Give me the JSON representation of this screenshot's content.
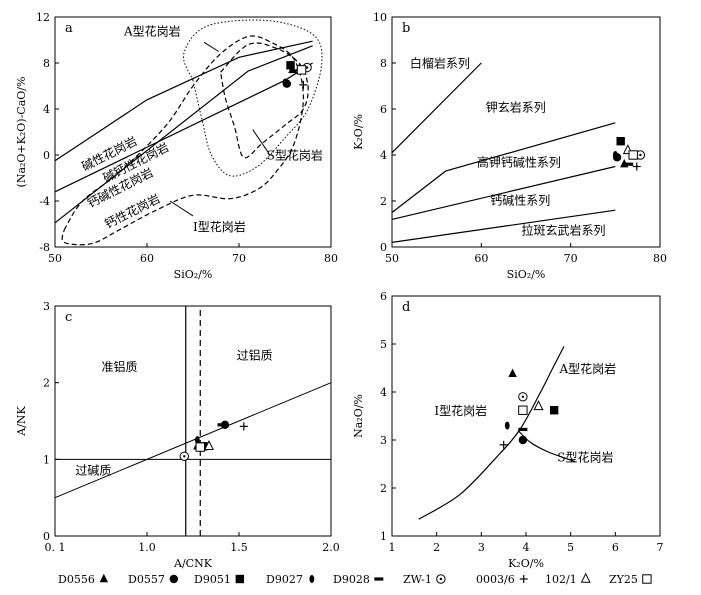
{
  "chart_data": [
    {
      "id": "a",
      "type": "scatter",
      "panel_label": "a",
      "xlabel": "SiO₂/%",
      "ylabel": "(Na₂O+K₂O)-CaO/%",
      "xlim": [
        50,
        80
      ],
      "ylim": [
        -8,
        12
      ],
      "xticks": [
        "50",
        "60",
        "70",
        "80"
      ],
      "yticks": [
        "-8",
        "-4",
        "0",
        "4",
        "8",
        "12"
      ],
      "field_labels": [
        "A型花岗岩",
        "碱性花岗岩",
        "碱钙性花岗岩",
        "钙碱性花岗岩",
        "钙性花岗岩",
        "S型花岗岩",
        "I型花岗岩"
      ],
      "series": [
        {
          "name": "D0556",
          "marker": "triangle",
          "x": 75.8,
          "y": 7.4
        },
        {
          "name": "D0557",
          "marker": "circle",
          "x": 75.2,
          "y": 6.2
        },
        {
          "name": "D9051",
          "marker": "square",
          "x": 75.6,
          "y": 7.8
        },
        {
          "name": "D9027",
          "marker": "diamond",
          "x": 75.0,
          "y": 6.3
        },
        {
          "name": "D9028",
          "marker": "dash",
          "x": 76.2,
          "y": 7.3
        },
        {
          "name": "ZW-1",
          "marker": "circledot",
          "x": 77.4,
          "y": 7.6
        },
        {
          "name": "0003/6",
          "marker": "plus",
          "x": 77.0,
          "y": 6.1
        },
        {
          "name": "102/1",
          "marker": "opentriangle",
          "x": 76.6,
          "y": 7.5
        },
        {
          "name": "ZY25",
          "marker": "opensquare",
          "x": 76.8,
          "y": 7.4
        }
      ]
    },
    {
      "id": "b",
      "type": "scatter",
      "panel_label": "b",
      "xlabel": "SiO₂/%",
      "ylabel": "K₂O/%",
      "xlim": [
        50,
        80
      ],
      "ylim": [
        0,
        10
      ],
      "xticks": [
        "50",
        "60",
        "70",
        "80"
      ],
      "yticks": [
        "0",
        "2",
        "4",
        "6",
        "8",
        "10"
      ],
      "field_labels": [
        "白榴岩系列",
        "钾玄岩系列",
        "高钾钙碱性系列",
        "钙碱性系列",
        "拉斑玄武岩系列"
      ],
      "series": [
        {
          "name": "D0556",
          "marker": "triangle",
          "x": 76.0,
          "y": 3.6
        },
        {
          "name": "D0557",
          "marker": "circle",
          "x": 75.2,
          "y": 3.9
        },
        {
          "name": "D9051",
          "marker": "square",
          "x": 75.6,
          "y": 4.6
        },
        {
          "name": "D9027",
          "marker": "diamond",
          "x": 75.0,
          "y": 4.0
        },
        {
          "name": "D9028",
          "marker": "dash",
          "x": 76.5,
          "y": 3.6
        },
        {
          "name": "ZW-1",
          "marker": "circledot",
          "x": 77.8,
          "y": 4.0
        },
        {
          "name": "0003/6",
          "marker": "plus",
          "x": 77.4,
          "y": 3.5
        },
        {
          "name": "102/1",
          "marker": "opentriangle",
          "x": 76.4,
          "y": 4.2
        },
        {
          "name": "ZY25",
          "marker": "opensquare",
          "x": 77.0,
          "y": 4.0
        }
      ]
    },
    {
      "id": "c",
      "type": "scatter",
      "panel_label": "c",
      "xlabel": "A/CNK",
      "ylabel": "A/NK",
      "xlim": [
        0.1,
        2.0
      ],
      "ylim": [
        0,
        3
      ],
      "xticks": [
        "0. 1",
        "1.0",
        "1.5",
        "2.0"
      ],
      "yticks": [
        "0",
        "1",
        "2",
        "3"
      ],
      "field_labels": [
        "准铝质",
        "过铝质",
        "过碱质"
      ],
      "series": [
        {
          "name": "D0556",
          "marker": "triangle",
          "x": 1.08,
          "y": 1.17
        },
        {
          "name": "D0557",
          "marker": "circle",
          "x": 1.27,
          "y": 1.45
        },
        {
          "name": "D9051",
          "marker": "square",
          "x": 1.12,
          "y": 1.17
        },
        {
          "name": "D9027",
          "marker": "diamond",
          "x": 1.08,
          "y": 1.25
        },
        {
          "name": "D9028",
          "marker": "dash",
          "x": 1.25,
          "y": 1.45
        },
        {
          "name": "ZW-1",
          "marker": "circledot",
          "x": 0.99,
          "y": 1.04
        },
        {
          "name": "0003/6",
          "marker": "plus",
          "x": 1.4,
          "y": 1.43
        },
        {
          "name": "102/1",
          "marker": "opentriangle",
          "x": 1.16,
          "y": 1.17
        },
        {
          "name": "ZY25",
          "marker": "opensquare",
          "x": 1.1,
          "y": 1.16
        }
      ]
    },
    {
      "id": "d",
      "type": "scatter",
      "panel_label": "d",
      "xlabel": "K₂O/%",
      "ylabel": "Na₂O/%",
      "xlim": [
        1,
        7
      ],
      "ylim": [
        1,
        6
      ],
      "xticks": [
        "1",
        "2",
        "3",
        "4",
        "5",
        "6",
        "7"
      ],
      "yticks": [
        "1",
        "2",
        "3",
        "4",
        "5",
        "6"
      ],
      "field_labels": [
        "A型花岗岩",
        "I型花岗岩",
        "S型花岗岩"
      ],
      "series": [
        {
          "name": "D0556",
          "marker": "triangle",
          "x": 3.7,
          "y": 4.38
        },
        {
          "name": "D0557",
          "marker": "circle",
          "x": 3.93,
          "y": 3.0
        },
        {
          "name": "D9051",
          "marker": "square",
          "x": 4.63,
          "y": 3.62
        },
        {
          "name": "D9027",
          "marker": "diamond",
          "x": 3.58,
          "y": 3.3
        },
        {
          "name": "D9028",
          "marker": "dash",
          "x": 3.93,
          "y": 3.22
        },
        {
          "name": "ZW-1",
          "marker": "circledot",
          "x": 3.93,
          "y": 3.9
        },
        {
          "name": "0003/6",
          "marker": "plus",
          "x": 3.5,
          "y": 2.9
        },
        {
          "name": "102/1",
          "marker": "opentriangle",
          "x": 4.28,
          "y": 3.7
        },
        {
          "name": "ZY25",
          "marker": "opensquare",
          "x": 3.93,
          "y": 3.62
        }
      ]
    }
  ],
  "legend": [
    {
      "name": "D0556",
      "marker": "triangle"
    },
    {
      "name": "D0557",
      "marker": "circle"
    },
    {
      "name": "D9051",
      "marker": "square"
    },
    {
      "name": "D9027",
      "marker": "diamond"
    },
    {
      "name": "D9028",
      "marker": "dash"
    },
    {
      "name": "ZW-1",
      "marker": "circledot"
    },
    {
      "name": "0003/6",
      "marker": "plus"
    },
    {
      "name": "102/1",
      "marker": "opentriangle"
    },
    {
      "name": "ZY25",
      "marker": "opensquare"
    }
  ]
}
